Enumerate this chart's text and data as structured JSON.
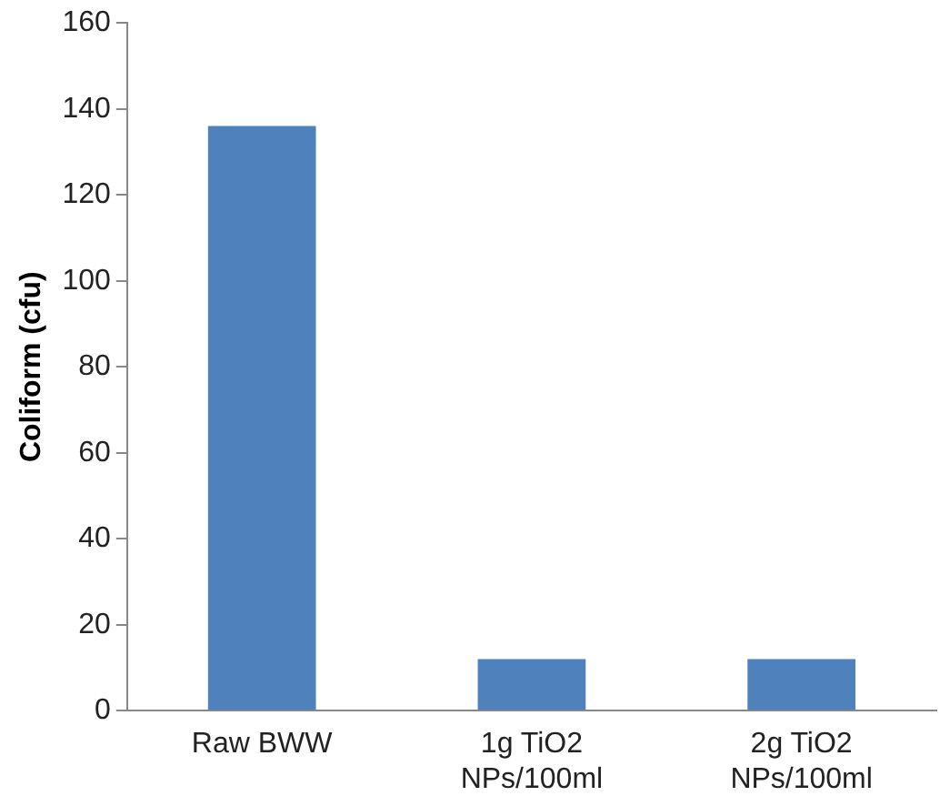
{
  "chart_data": {
    "type": "bar",
    "ylabel": "Coliform (cfu)",
    "categories": [
      "Raw BWW",
      "1g TiO2 NPs/100ml",
      "2g TiO2 NPs/100ml"
    ],
    "values": [
      136,
      12,
      12
    ],
    "color": "#4f81bd",
    "ylim": [
      0,
      160
    ],
    "yticks": [
      0,
      20,
      40,
      60,
      80,
      100,
      120,
      140,
      160
    ],
    "grid": false,
    "legend": false
  }
}
